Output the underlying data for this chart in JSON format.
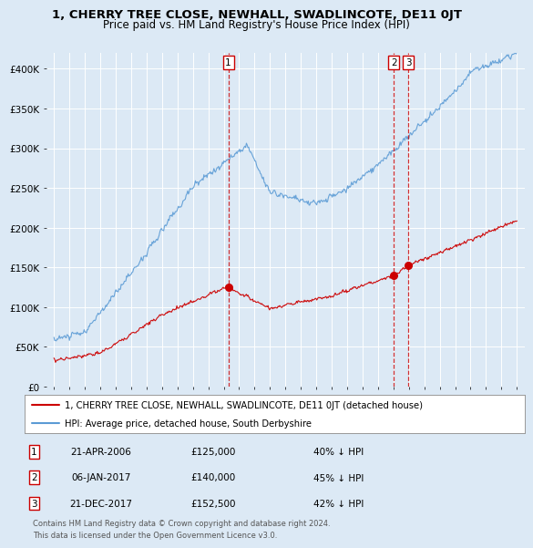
{
  "title": "1, CHERRY TREE CLOSE, NEWHALL, SWADLINCOTE, DE11 0JT",
  "subtitle": "Price paid vs. HM Land Registry's House Price Index (HPI)",
  "title_fontsize": 9.5,
  "subtitle_fontsize": 8.5,
  "bg_color": "#dce9f5",
  "plot_bg_color": "#dce9f5",
  "grid_color": "#ffffff",
  "red_color": "#cc0000",
  "blue_color": "#5b9bd5",
  "ylim": [
    0,
    420000
  ],
  "xlim": [
    1994.5,
    2025.5
  ],
  "yticks": [
    0,
    50000,
    100000,
    150000,
    200000,
    250000,
    300000,
    350000,
    400000
  ],
  "ytick_labels": [
    "£0",
    "£50K",
    "£100K",
    "£150K",
    "£200K",
    "£250K",
    "£300K",
    "£350K",
    "£400K"
  ],
  "legend_line1": "1, CHERRY TREE CLOSE, NEWHALL, SWADLINCOTE, DE11 0JT (detached house)",
  "legend_line2": "HPI: Average price, detached house, South Derbyshire",
  "transactions": [
    {
      "num": 1,
      "date": "21-APR-2006",
      "price": 125000,
      "pct": "40%",
      "dir": "↓",
      "x_year": 2006.3
    },
    {
      "num": 2,
      "date": "06-JAN-2017",
      "price": 140000,
      "pct": "45%",
      "dir": "↓",
      "x_year": 2017.02
    },
    {
      "num": 3,
      "date": "21-DEC-2017",
      "price": 152500,
      "pct": "42%",
      "dir": "↓",
      "x_year": 2017.97
    }
  ],
  "footer_line1": "Contains HM Land Registry data © Crown copyright and database right 2024.",
  "footer_line2": "This data is licensed under the Open Government Licence v3.0."
}
